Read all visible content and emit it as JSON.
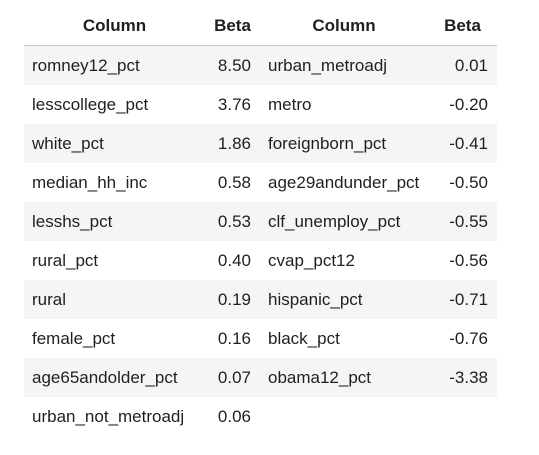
{
  "table": {
    "headers": [
      "Column",
      "Beta",
      "Column",
      "Beta"
    ],
    "rows": [
      [
        "romney12_pct",
        "8.50",
        "urban_metroadj",
        "0.01"
      ],
      [
        "lesscollege_pct",
        "3.76",
        "metro",
        "-0.20"
      ],
      [
        "white_pct",
        "1.86",
        "foreignborn_pct",
        "-0.41"
      ],
      [
        "median_hh_inc",
        "0.58",
        "age29andunder_pct",
        "-0.50"
      ],
      [
        "lesshs_pct",
        "0.53",
        "clf_unemploy_pct",
        "-0.55"
      ],
      [
        "rural_pct",
        "0.40",
        "cvap_pct12",
        "-0.56"
      ],
      [
        "rural",
        "0.19",
        "hispanic_pct",
        "-0.71"
      ],
      [
        "female_pct",
        "0.16",
        "black_pct",
        "-0.76"
      ],
      [
        "age65andolder_pct",
        "0.07",
        "obama12_pct",
        "-3.38"
      ],
      [
        "urban_not_metroadj",
        "0.06",
        "",
        ""
      ]
    ]
  }
}
